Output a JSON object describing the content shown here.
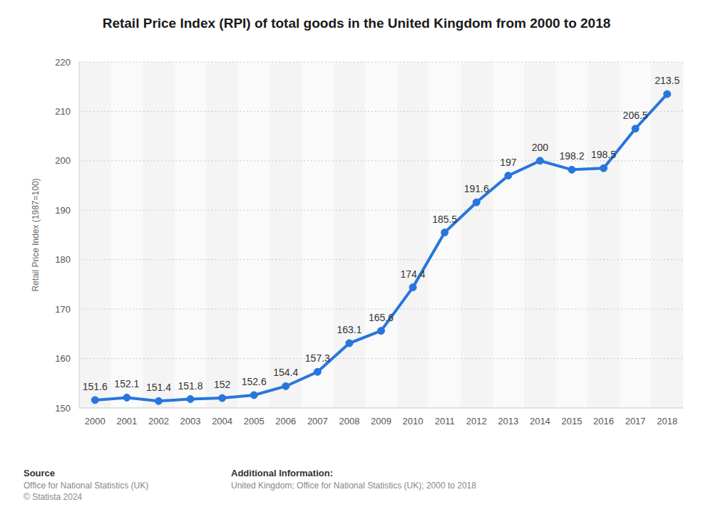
{
  "chart_data": {
    "type": "line",
    "title": "Retail Price Index (RPI) of total goods in the United Kingdom from 2000 to 2018",
    "y_label": "Retail Price Index (1987=100)",
    "categories": [
      "2000",
      "2001",
      "2002",
      "2003",
      "2004",
      "2005",
      "2006",
      "2007",
      "2008",
      "2009",
      "2010",
      "2011",
      "2012",
      "2013",
      "2014",
      "2015",
      "2016",
      "2017",
      "2018"
    ],
    "values": [
      151.6,
      152.1,
      151.4,
      151.8,
      152,
      152.6,
      154.4,
      157.3,
      163.1,
      165.6,
      174.4,
      185.5,
      191.6,
      197,
      200,
      198.2,
      198.5,
      206.5,
      213.5
    ],
    "color": "#2876dd",
    "ylim": [
      150,
      220
    ],
    "yticks": [
      150,
      160,
      170,
      180,
      190,
      200,
      210,
      220
    ],
    "grid": true,
    "data_labels": true,
    "marker": "circle",
    "line_style": "solid",
    "source": {
      "heading": "Source",
      "lines": [
        "Office for National Statistics (UK)",
        "© Statista 2024"
      ]
    },
    "additional_info": {
      "heading": "Additional Information:",
      "lines": [
        "United Kingdom; Office for National Statistics (UK); 2000 to 2018"
      ]
    }
  }
}
